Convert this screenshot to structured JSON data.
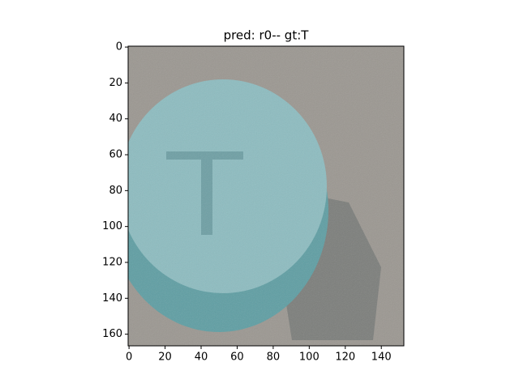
{
  "chart_data": {
    "type": "image",
    "title": "pred: r0-- gt:T",
    "xlim": [
      -0.5,
      152.5
    ],
    "xticks": [
      0,
      20,
      40,
      60,
      80,
      100,
      120,
      140
    ],
    "ylim": [
      166.5,
      -0.5
    ],
    "yticks": [
      0,
      20,
      40,
      60,
      80,
      100,
      120,
      140,
      160
    ]
  }
}
